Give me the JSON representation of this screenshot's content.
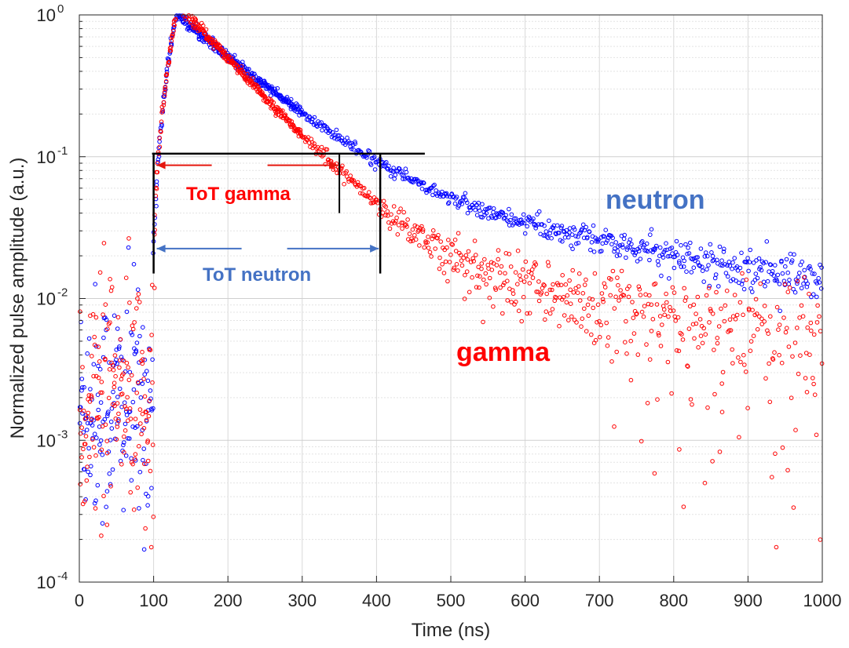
{
  "chart_data": {
    "type": "scatter",
    "title": "",
    "xlabel": "Time (ns)",
    "ylabel": "Normalized pulse amplitude (a.u.)",
    "xlim": [
      0,
      1000
    ],
    "ylim": [
      0.0001,
      1
    ],
    "yscale": "log",
    "grid": true,
    "x_ticks": [
      "0",
      "100",
      "200",
      "300",
      "400",
      "500",
      "600",
      "700",
      "800",
      "900",
      "1000"
    ],
    "y_ticks": [
      {
        "value": 1,
        "base": "10",
        "exp": "0"
      },
      {
        "value": 0.1,
        "base": "10",
        "exp": "-1"
      },
      {
        "value": 0.01,
        "base": "10",
        "exp": "-2"
      },
      {
        "value": 0.001,
        "base": "10",
        "exp": "-3"
      },
      {
        "value": 0.0001,
        "base": "10",
        "exp": "-4"
      }
    ],
    "series": [
      {
        "name": "neutron",
        "color": "#0000ff",
        "label_color": "#4472c4",
        "model": {
          "pre_noise_mean": 0.002,
          "rise_start_ns": 100,
          "peak_ns": 130,
          "fast_amp": 0.95,
          "fast_tau_ns": 95,
          "slow_amp": 0.06,
          "slow_tau_ns": 600
        }
      },
      {
        "name": "gamma",
        "color": "#ff0000",
        "label_color": "#ff0000",
        "model": {
          "pre_noise_mean": 0.002,
          "rise_start_ns": 100,
          "peak_ns": 130,
          "fast_amp": 1.2,
          "fast_tau_ns": 75,
          "slow_amp": 0.025,
          "slow_tau_ns": 500
        }
      }
    ],
    "threshold": {
      "value": 0.105,
      "x_start": 100,
      "x_end": 465
    },
    "markers": {
      "start_ns": 100,
      "gamma_end_ns": 350,
      "neutron_end_ns": 405
    },
    "annotations": {
      "tot_gamma": "ToT gamma",
      "tot_neutron": "ToT neutron",
      "neutron": "neutron",
      "gamma": "gamma"
    }
  }
}
